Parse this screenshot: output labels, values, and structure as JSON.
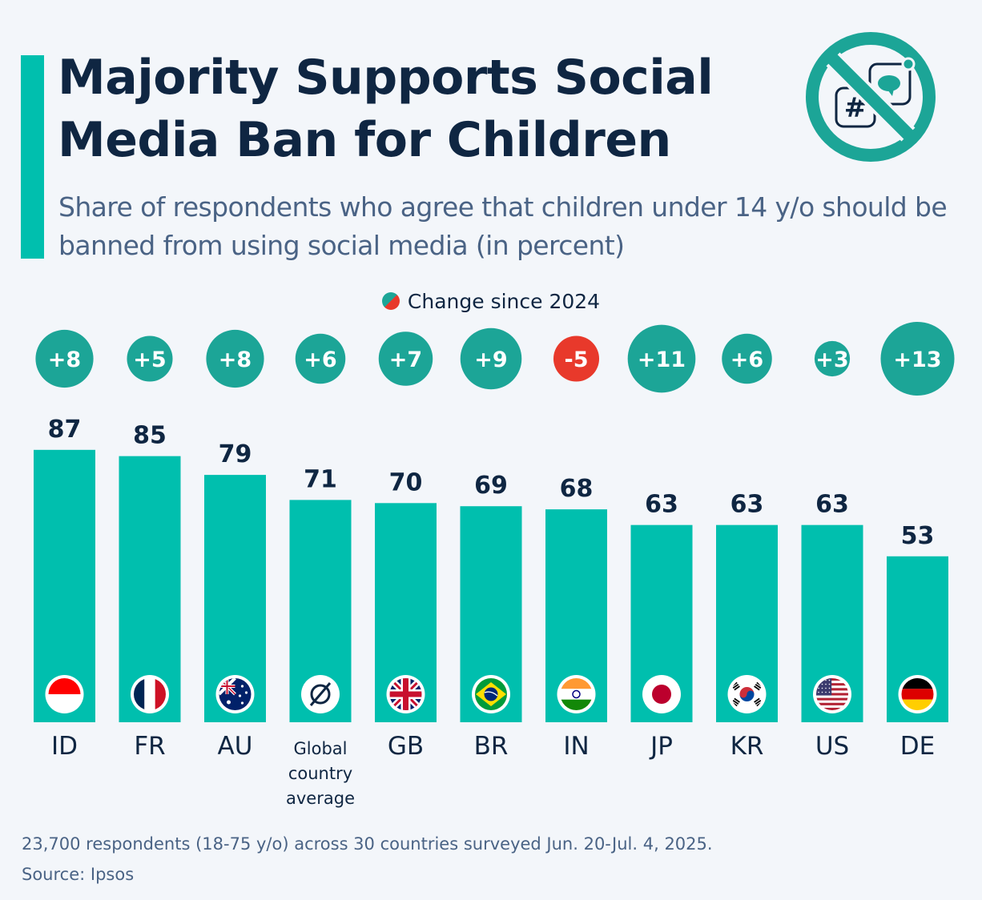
{
  "header": {
    "title": "Majority Supports Social Media Ban for Children",
    "subtitle": "Share of respondents who agree that children under 14 y/o should be banned from using social media (in percent)",
    "logo_icon": "no-social-media-icon"
  },
  "legend": {
    "label": "Change since 2024"
  },
  "footer": {
    "note": "23,700 respondents (18-75 y/o) across 30 countries surveyed Jun. 20-Jul. 4, 2025.",
    "source": "Source: Ipsos"
  },
  "colors": {
    "bar": "#00bfae",
    "positive_change": "#1ca597",
    "negative_change": "#e8392b",
    "text": "#0f2642",
    "background": "#f3f6fa"
  },
  "chart_data": {
    "type": "bar",
    "title": "Majority Supports Social Media Ban for Children",
    "subtitle": "Share of respondents who agree that children under 14 y/o should be banned from using social media (in percent)",
    "xlabel": "",
    "ylabel": "",
    "ylim": [
      0,
      100
    ],
    "grid": false,
    "legend_position": "top-center",
    "categories": [
      "ID",
      "FR",
      "AU",
      "Global country average",
      "GB",
      "BR",
      "IN",
      "JP",
      "KR",
      "US",
      "DE"
    ],
    "category_labels": [
      [
        "ID"
      ],
      [
        "FR"
      ],
      [
        "AU"
      ],
      [
        "Global",
        "country",
        "average"
      ],
      [
        "GB"
      ],
      [
        "BR"
      ],
      [
        "IN"
      ],
      [
        "JP"
      ],
      [
        "KR"
      ],
      [
        "US"
      ],
      [
        "DE"
      ]
    ],
    "flags": [
      "ID",
      "FR",
      "AU",
      "avg",
      "GB",
      "BR",
      "IN",
      "JP",
      "KR",
      "US",
      "DE"
    ],
    "series": [
      {
        "name": "Share agreeing (%)",
        "values": [
          87,
          85,
          79,
          71,
          70,
          69,
          68,
          63,
          63,
          63,
          53
        ]
      },
      {
        "name": "Change since 2024",
        "values": [
          8,
          5,
          8,
          6,
          7,
          9,
          -5,
          11,
          6,
          3,
          13
        ]
      }
    ]
  }
}
